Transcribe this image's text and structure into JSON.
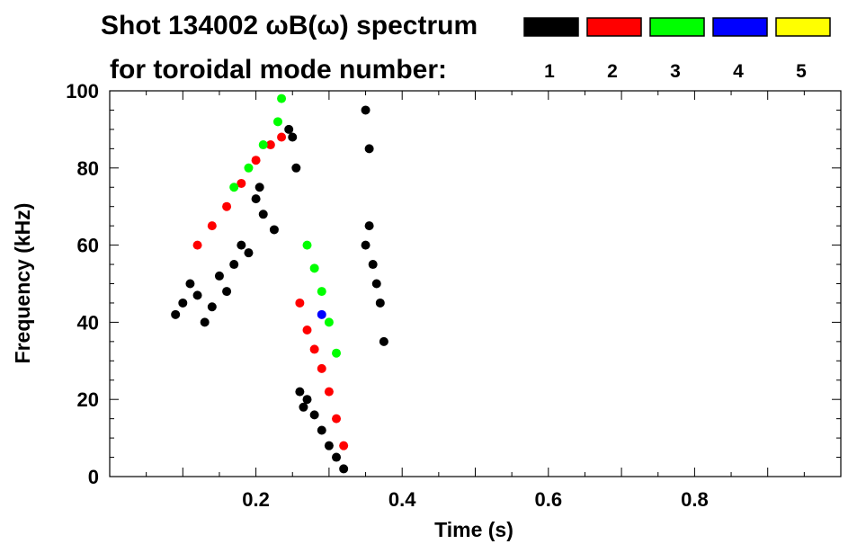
{
  "chart_data": {
    "type": "scatter",
    "title": "Shot 134002 ωB(ω) spectrum",
    "subtitle": "for toroidal mode number:",
    "xlabel": "Time (s)",
    "ylabel": "Frequency (kHz)",
    "xlim": [
      0.0,
      1.0
    ],
    "ylim": [
      0,
      100
    ],
    "x_ticks": [
      0.2,
      0.4,
      0.6,
      0.8
    ],
    "x_tick_labels": [
      "0.2",
      "0.4",
      "0.6",
      "0.8"
    ],
    "y_ticks": [
      0,
      20,
      40,
      60,
      80,
      100
    ],
    "y_tick_labels": [
      "0",
      "20",
      "40",
      "60",
      "80",
      "100"
    ],
    "grid": false,
    "legend_position": "top-right",
    "legend": [
      {
        "label": "1",
        "color": "#000000"
      },
      {
        "label": "2",
        "color": "#ff0000"
      },
      {
        "label": "3",
        "color": "#00ff00"
      },
      {
        "label": "4",
        "color": "#0000ff"
      },
      {
        "label": "5",
        "color": "#ffff00"
      }
    ],
    "series": [
      {
        "name": "1",
        "color": "#000000",
        "points": [
          [
            0.09,
            42
          ],
          [
            0.1,
            45
          ],
          [
            0.11,
            50
          ],
          [
            0.12,
            47
          ],
          [
            0.13,
            40
          ],
          [
            0.14,
            44
          ],
          [
            0.15,
            52
          ],
          [
            0.16,
            48
          ],
          [
            0.17,
            55
          ],
          [
            0.18,
            60
          ],
          [
            0.19,
            58
          ],
          [
            0.2,
            72
          ],
          [
            0.205,
            75
          ],
          [
            0.21,
            68
          ],
          [
            0.225,
            64
          ],
          [
            0.245,
            90
          ],
          [
            0.25,
            88
          ],
          [
            0.255,
            80
          ],
          [
            0.26,
            22
          ],
          [
            0.265,
            18
          ],
          [
            0.27,
            20
          ],
          [
            0.28,
            16
          ],
          [
            0.29,
            12
          ],
          [
            0.3,
            8
          ],
          [
            0.31,
            5
          ],
          [
            0.32,
            2
          ],
          [
            0.35,
            60
          ],
          [
            0.355,
            65
          ],
          [
            0.36,
            55
          ],
          [
            0.365,
            50
          ],
          [
            0.37,
            45
          ],
          [
            0.355,
            85
          ],
          [
            0.35,
            95
          ],
          [
            0.375,
            35
          ]
        ]
      },
      {
        "name": "2",
        "color": "#ff0000",
        "points": [
          [
            0.12,
            60
          ],
          [
            0.14,
            65
          ],
          [
            0.16,
            70
          ],
          [
            0.18,
            76
          ],
          [
            0.2,
            82
          ],
          [
            0.22,
            86
          ],
          [
            0.235,
            88
          ],
          [
            0.26,
            45
          ],
          [
            0.27,
            38
          ],
          [
            0.28,
            33
          ],
          [
            0.29,
            28
          ],
          [
            0.3,
            22
          ],
          [
            0.31,
            15
          ],
          [
            0.32,
            8
          ]
        ]
      },
      {
        "name": "3",
        "color": "#00ff00",
        "points": [
          [
            0.17,
            75
          ],
          [
            0.19,
            80
          ],
          [
            0.21,
            86
          ],
          [
            0.23,
            92
          ],
          [
            0.235,
            98
          ],
          [
            0.27,
            60
          ],
          [
            0.28,
            54
          ],
          [
            0.29,
            48
          ],
          [
            0.3,
            40
          ],
          [
            0.31,
            32
          ]
        ]
      },
      {
        "name": "4",
        "color": "#0000ff",
        "points": [
          [
            0.29,
            42
          ]
        ]
      }
    ]
  }
}
